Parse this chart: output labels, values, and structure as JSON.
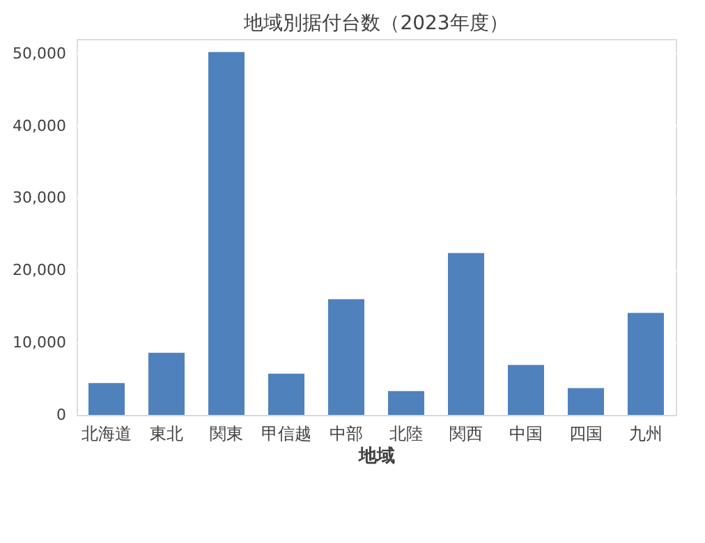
{
  "chart_data": {
    "type": "bar",
    "title": "地域別据付台数（2023年度）",
    "xlabel": "地域",
    "categories": [
      "北海道",
      "東北",
      "関東",
      "甲信越",
      "中部",
      "北陸",
      "関西",
      "中国",
      "四国",
      "九州"
    ],
    "values": [
      4400,
      8600,
      50200,
      5700,
      16000,
      3300,
      22400,
      6900,
      3700,
      14100
    ],
    "color": "#4f81bd",
    "ylim": [
      0,
      52000
    ],
    "yticks": [
      {
        "value": 0,
        "label": "0"
      },
      {
        "value": 10000,
        "label": "10,000"
      },
      {
        "value": 20000,
        "label": "20,000"
      },
      {
        "value": 30000,
        "label": "30,000"
      },
      {
        "value": 40000,
        "label": "40,000"
      },
      {
        "value": 50000,
        "label": "50,000"
      }
    ],
    "grid": "y"
  }
}
